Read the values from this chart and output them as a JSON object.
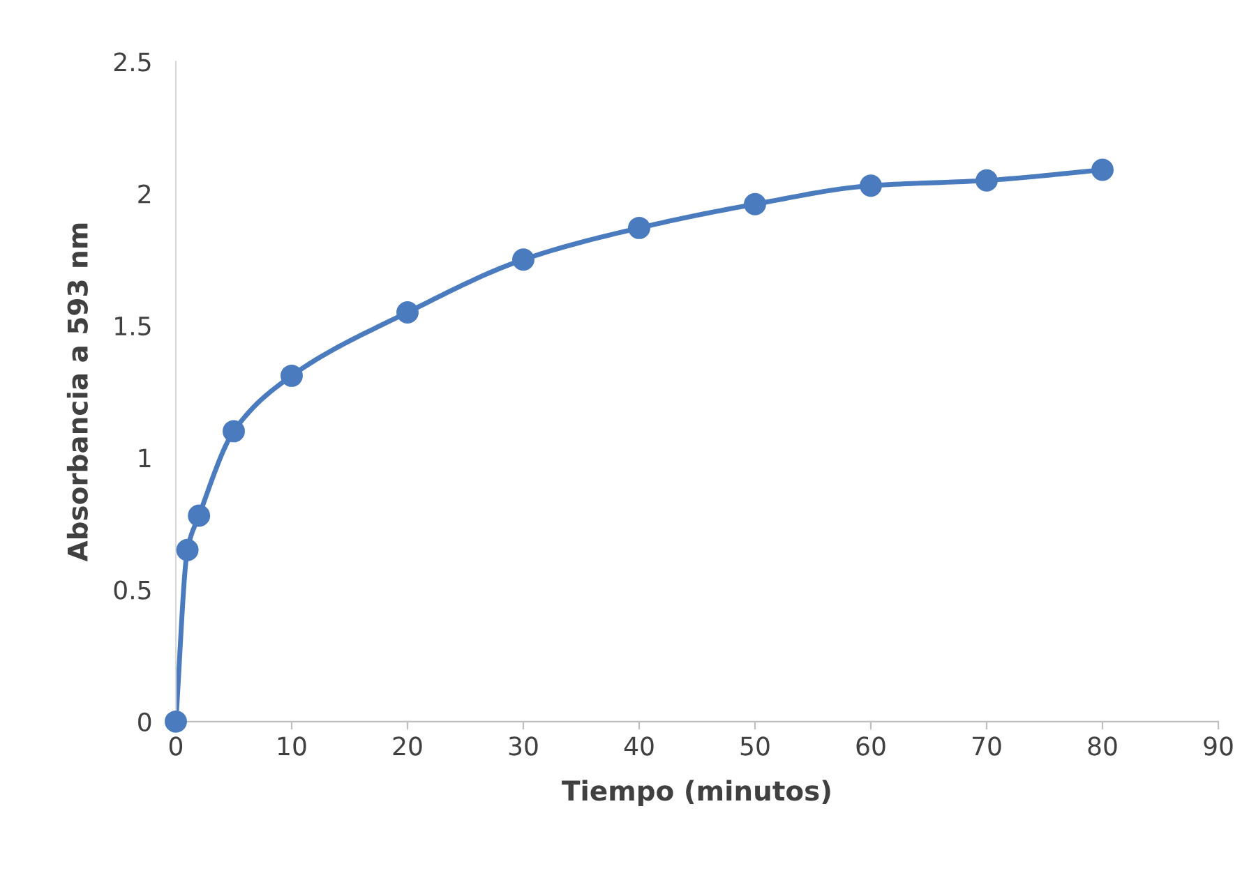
{
  "chart_data": {
    "type": "line",
    "xlabel": "Tiempo (minutos)",
    "ylabel": "Absorbancia a 593 nm",
    "x": [
      0,
      1,
      2,
      5,
      10,
      20,
      30,
      40,
      50,
      60,
      70,
      80
    ],
    "series": [
      {
        "color": "#4a7bbf",
        "values": [
          0,
          0.65,
          0.78,
          1.1,
          1.31,
          1.55,
          1.75,
          1.87,
          1.96,
          2.03,
          2.05,
          2.09
        ]
      }
    ],
    "xlim": [
      0,
      90
    ],
    "xticks": [
      0,
      10,
      20,
      30,
      40,
      50,
      60,
      70,
      80,
      90
    ],
    "ylim": [
      0,
      2.5
    ],
    "yticks": [
      0,
      0.5,
      1,
      1.5,
      2,
      2.5
    ],
    "grid": false,
    "marker": "circle",
    "line_style": "solid",
    "legend": false
  }
}
